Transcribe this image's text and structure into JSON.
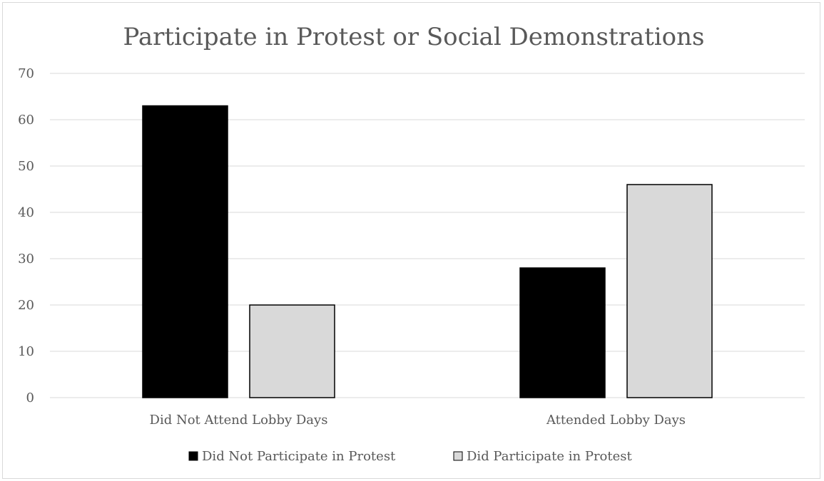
{
  "chart_data": {
    "type": "bar",
    "title": "Participate in Protest or Social Demonstrations",
    "categories": [
      "Did Not Attend Lobby Days",
      "Attended Lobby Days"
    ],
    "series": [
      {
        "name": "Did Not Participate in Protest",
        "values": [
          63,
          28
        ],
        "color": "#000000"
      },
      {
        "name": "Did Participate in Protest",
        "values": [
          20,
          46
        ],
        "color": "#d9d9d9"
      }
    ],
    "ylim": [
      0,
      70
    ],
    "yticks": [
      0,
      10,
      20,
      30,
      40,
      50,
      60,
      70
    ],
    "grid": true,
    "legend_position": "bottom"
  }
}
